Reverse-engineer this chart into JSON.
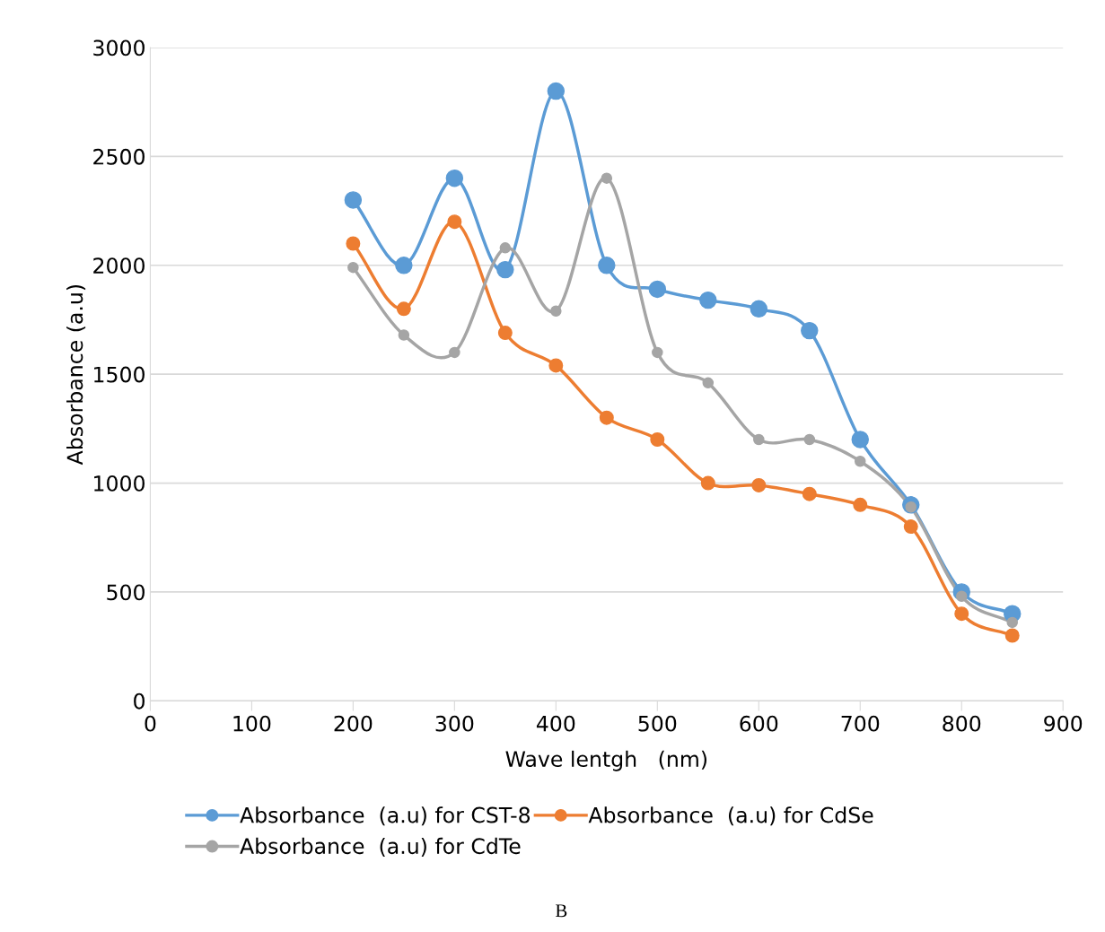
{
  "chart_data": {
    "type": "line",
    "xlabel": "Wave lentgh   (nm)",
    "ylabel": "Absorbance (a.u)",
    "x": [
      200,
      250,
      300,
      350,
      400,
      450,
      500,
      550,
      600,
      650,
      700,
      750,
      800,
      850
    ],
    "series": [
      {
        "name": "Absorbance  (a.u) for CST-8",
        "color": "#5b9bd5",
        "values": [
          2300,
          2000,
          2400,
          1980,
          2800,
          2000,
          1890,
          1840,
          1800,
          1700,
          1200,
          900,
          500,
          400
        ]
      },
      {
        "name": "Absorbance  (a.u) for CdSe",
        "color": "#ed7d31",
        "values": [
          2100,
          1800,
          2200,
          1690,
          1540,
          1300,
          1200,
          1000,
          990,
          950,
          900,
          800,
          400,
          300
        ]
      },
      {
        "name": "Absorbance  (a.u) for CdTe",
        "color": "#a5a5a5",
        "values": [
          1990,
          1680,
          1600,
          2080,
          1790,
          2400,
          1600,
          1460,
          1200,
          1200,
          1100,
          890,
          480,
          360
        ]
      }
    ],
    "xlim": [
      0,
      900
    ],
    "xticks": [
      0,
      100,
      200,
      300,
      400,
      500,
      600,
      700,
      800,
      900
    ],
    "ylim": [
      0,
      3000
    ],
    "yticks": [
      0,
      500,
      1000,
      1500,
      2000,
      2500,
      3000
    ],
    "grid": "y",
    "legend": "bottom",
    "marker": "circle",
    "line_style": "solid",
    "annotations": [
      "B"
    ]
  }
}
